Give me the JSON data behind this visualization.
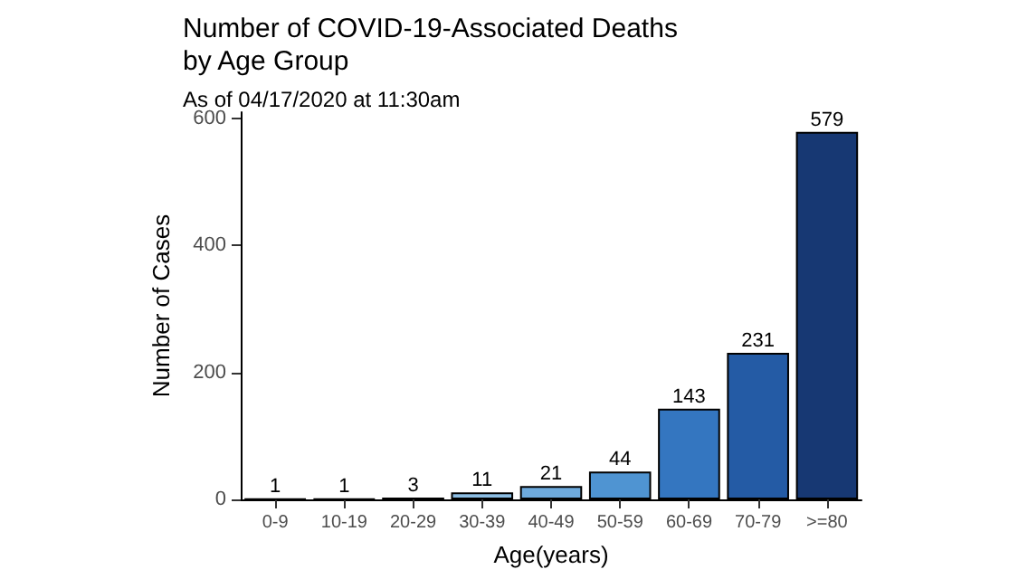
{
  "chart_data": {
    "type": "bar",
    "title": "Number of COVID-19-Associated Deaths\nby Age Group",
    "subtitle": "As of 04/17/2020 at 11:30am",
    "xlabel": "Age(years)",
    "ylabel": "Number of Cases",
    "categories": [
      "0-9",
      "10-19",
      "20-29",
      "30-39",
      "40-49",
      "50-59",
      "60-69",
      "70-79",
      ">=80"
    ],
    "values": [
      1,
      1,
      3,
      11,
      21,
      44,
      143,
      231,
      579
    ],
    "colors": [
      "#c6dbef",
      "#b3d3ec",
      "#a0c8e8",
      "#8cbde3",
      "#6eaadc",
      "#4f94d2",
      "#3476c0",
      "#245ba5",
      "#173873"
    ],
    "ylim": [
      0,
      610
    ],
    "yticks": [
      0,
      200,
      400,
      600
    ],
    "grid": false,
    "data_labels": true
  }
}
